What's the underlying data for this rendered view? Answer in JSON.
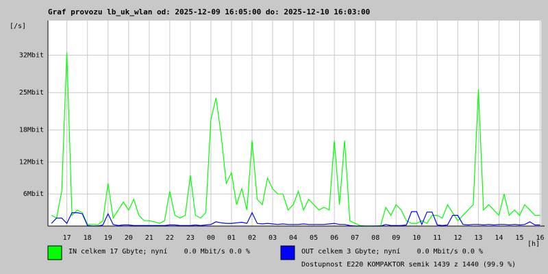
{
  "chart_data": {
    "type": "line",
    "title": "Graf provozu lb_uk_wlan od: 2025-12-09 16:05:00 do: 2025-12-10 16:03:00",
    "y_label": "[/s]",
    "x_label": "[h]",
    "x": [
      16.25,
      16.5,
      16.75,
      17,
      17.25,
      17.5,
      17.75,
      18,
      18.25,
      18.5,
      18.75,
      19,
      19.25,
      19.5,
      19.75,
      20,
      20.25,
      20.5,
      20.75,
      21,
      21.25,
      21.5,
      21.75,
      22,
      22.25,
      22.5,
      22.75,
      23,
      23.25,
      23.5,
      23.75,
      24,
      24.25,
      24.5,
      24.75,
      25,
      25.25,
      25.5,
      25.75,
      26,
      26.25,
      26.5,
      26.75,
      27,
      27.25,
      27.5,
      27.75,
      28,
      28.25,
      28.5,
      28.75,
      29,
      29.25,
      29.5,
      29.75,
      30,
      30.25,
      30.5,
      30.75,
      31,
      31.25,
      31.5,
      31.75,
      32,
      32.25,
      32.5,
      32.75,
      33,
      33.25,
      33.5,
      33.75,
      34,
      34.25,
      34.5,
      34.75,
      35,
      35.25,
      35.5,
      35.75,
      36,
      36.25,
      36.5,
      36.75,
      37,
      37.25,
      37.5,
      37.75,
      38,
      38.25,
      38.5,
      38.75,
      39,
      39.25,
      39.5,
      39.75,
      40
    ],
    "series": [
      {
        "name": "IN celkem 17 Gbyte; nyní    0.0 Mbit/s 0.0 %",
        "color": "#00ff00",
        "values": [
          2,
          1.5,
          6.5,
          32.5,
          2,
          3,
          2.5,
          0.3,
          0.3,
          0.2,
          1,
          8,
          1.5,
          3,
          4.5,
          3,
          5,
          2,
          1,
          1,
          0.8,
          0.5,
          1,
          6.5,
          2,
          1.5,
          2,
          9.5,
          2,
          1.5,
          2.5,
          20,
          24,
          17,
          8,
          10,
          4,
          7,
          3,
          16,
          5,
          4,
          9,
          7,
          6,
          6,
          3,
          4,
          6.5,
          3,
          5,
          4,
          3,
          3.5,
          3,
          16,
          4,
          16,
          1,
          0.5,
          0.1,
          0,
          0,
          0,
          0.1,
          3.5,
          2,
          4,
          3,
          1,
          0.5,
          0.5,
          1,
          0.5,
          2,
          2,
          1.5,
          4,
          2.5,
          1,
          2,
          3,
          4,
          25.6,
          3,
          4,
          3,
          2,
          6,
          2,
          3,
          2,
          4,
          3,
          2,
          2
        ]
      },
      {
        "name": "OUT celkem 3 Gbyte; nyní    0.0 Mbit/s 0.0 %",
        "color": "#0000ff",
        "values": [
          0.5,
          1.5,
          1.5,
          0.5,
          2.5,
          2.5,
          2.3,
          0.1,
          0,
          0,
          0.2,
          2.3,
          0.3,
          0.1,
          0.2,
          0.2,
          0.1,
          0.1,
          0.1,
          0.1,
          0.1,
          0.1,
          0.1,
          0.2,
          0.2,
          0.1,
          0.1,
          0.1,
          0.2,
          0.1,
          0.2,
          0.3,
          0.8,
          0.6,
          0.5,
          0.5,
          0.6,
          0.7,
          0.5,
          2.5,
          0.5,
          0.4,
          0.5,
          0.4,
          0.3,
          0.4,
          0.3,
          0.3,
          0.3,
          0.4,
          0.3,
          0.3,
          0.3,
          0.3,
          0.4,
          0.5,
          0.3,
          0.3,
          0.1,
          0,
          0,
          0,
          0,
          0,
          0,
          0.3,
          0.1,
          0.1,
          0.1,
          0.2,
          2.7,
          2.7,
          0.3,
          2.6,
          2.6,
          0.2,
          0.1,
          0.2,
          2,
          2,
          0.3,
          0.2,
          0.3,
          0.3,
          0.2,
          0.3,
          0.2,
          0.3,
          0.3,
          0.2,
          0.3,
          0.2,
          0.3,
          0.8,
          0.2,
          0.2
        ]
      }
    ],
    "xlim": [
      16.08,
      40.05
    ],
    "xticks": [
      17,
      18,
      19,
      20,
      21,
      22,
      23,
      {
        "value": 24,
        "label": "00"
      },
      {
        "value": 25,
        "label": "01"
      },
      {
        "value": 26,
        "label": "02"
      },
      {
        "value": 27,
        "label": "03"
      },
      {
        "value": 28,
        "label": "04"
      },
      {
        "value": 29,
        "label": "05"
      },
      {
        "value": 30,
        "label": "06"
      },
      {
        "value": 31,
        "label": "07"
      },
      {
        "value": 32,
        "label": "08"
      },
      {
        "value": 33,
        "label": "09"
      },
      {
        "value": 34,
        "label": "10"
      },
      {
        "value": 35,
        "label": "11"
      },
      {
        "value": 36,
        "label": "12"
      },
      {
        "value": 37,
        "label": "13"
      },
      {
        "value": 38,
        "label": "14"
      },
      {
        "value": 39,
        "label": "15"
      },
      {
        "value": 40,
        "label": "16"
      }
    ],
    "ylim": [
      0,
      38.5
    ],
    "yticks": [
      {
        "value": 6,
        "label": "6Mbit"
      },
      {
        "value": 12,
        "label": "12Mbit"
      },
      {
        "value": 18,
        "label": "18Mbit"
      },
      {
        "value": 25,
        "label": "25Mbit"
      },
      {
        "value": 32,
        "label": "32Mbit"
      }
    ],
    "grid": true,
    "note": "Dostupnost E220 KOMPAKTOR semik 1439 z 1440 (99.9 %)",
    "note_color": "#ff0000"
  }
}
